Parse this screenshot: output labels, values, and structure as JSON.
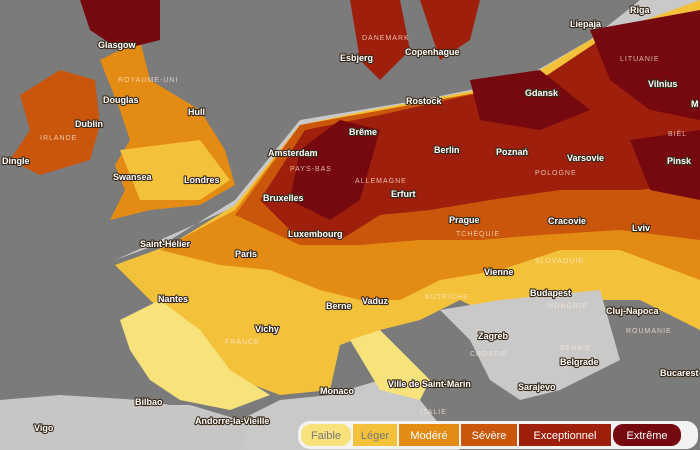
{
  "cities": [
    "Glasgow",
    "Esbjerg",
    "Copenhague",
    "Liepaja",
    "Riga",
    "Douglas",
    "Dublin",
    "Hull",
    "Rostock",
    "Gdansk",
    "Vilnius",
    "Dingle",
    "Brême",
    "Amsterdam",
    "Berlin",
    "Poznań",
    "Varsovie",
    "Pinsk",
    "Swansea",
    "Londres",
    "Erfurt",
    "Bruxelles",
    "Prague",
    "Cracovie",
    "Lviv",
    "Luxembourg",
    "Saint-Hélier",
    "Paris",
    "Vienne",
    "Nantes",
    "Budapest",
    "Berne",
    "Vaduz",
    "Zagreb",
    "Cluj-Napoca",
    "Vichy",
    "Belgrade",
    "Bucarest",
    "Monaco",
    "Ville de Saint-Marin",
    "Sarajevo",
    "Bilbao",
    "Andorre-la-Vieille",
    "Vigo",
    "M"
  ],
  "countries": [
    "ROYAUME-UNI",
    "IRLANDE",
    "DANEMARK",
    "LITUANIE",
    "BIÉL",
    "PAYS-BAS",
    "ALLEMAGNE",
    "POLOGNE",
    "TCHÉQUIE",
    "SLOVAQUIE",
    "AUTRICHE",
    "HONGRIE",
    "FRANCE",
    "CROATIE",
    "ROUMANIE",
    "SERBIE",
    "ITALIE"
  ],
  "legend": [
    {
      "label": "Faible",
      "color": "#f7e27c"
    },
    {
      "label": "Léger",
      "color": "#f4c13a"
    },
    {
      "label": "Modéré",
      "color": "#e38b12"
    },
    {
      "label": "Sévère",
      "color": "#c9560b"
    },
    {
      "label": "Exceptionnel",
      "color": "#9e1f0b"
    },
    {
      "label": "Extrême",
      "color": "#760910"
    }
  ]
}
